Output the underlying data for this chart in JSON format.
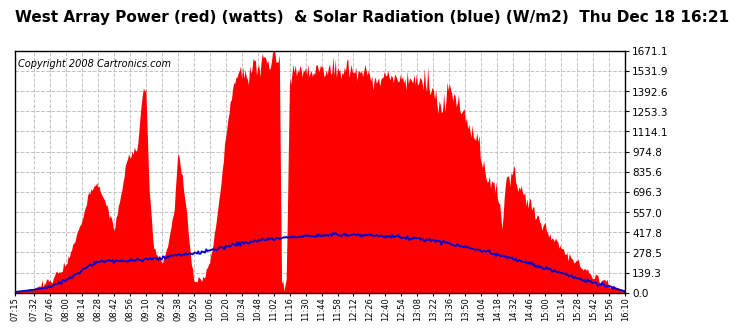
{
  "title": "West Array Power (red) (watts)  & Solar Radiation (blue) (W/m2)  Thu Dec 18 16:21",
  "copyright": "Copyright 2008 Cartronics.com",
  "yticks": [
    0.0,
    139.3,
    278.5,
    417.8,
    557.0,
    696.3,
    835.6,
    974.8,
    1114.1,
    1253.3,
    1392.6,
    1531.9,
    1671.1
  ],
  "xtick_labels": [
    "07:15",
    "07:32",
    "07:46",
    "08:00",
    "08:14",
    "08:28",
    "08:42",
    "08:56",
    "09:10",
    "09:24",
    "09:38",
    "09:52",
    "10:06",
    "10:20",
    "10:34",
    "10:48",
    "11:02",
    "11:16",
    "11:30",
    "11:44",
    "11:58",
    "12:12",
    "12:26",
    "12:40",
    "12:54",
    "13:08",
    "13:22",
    "13:36",
    "13:50",
    "14:04",
    "14:18",
    "14:32",
    "14:46",
    "15:00",
    "15:14",
    "15:28",
    "15:42",
    "15:56",
    "16:10"
  ],
  "ymax": 1671.1,
  "ymin": 0.0,
  "title_fontsize": 11,
  "copyright_fontsize": 7,
  "bg_color": "#ffffff",
  "plot_bg": "#ffffff",
  "red_color": "#ff0000",
  "blue_color": "#0000cc",
  "grid_color": "#bbbbbb",
  "border_color": "#000000"
}
